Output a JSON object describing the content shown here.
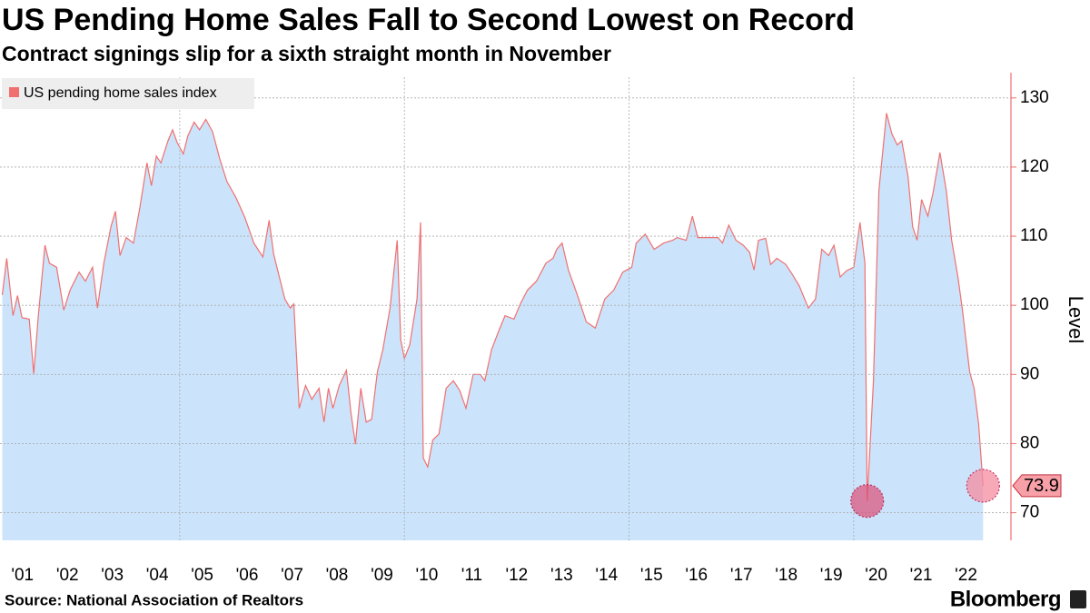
{
  "chart_data": {
    "type": "area",
    "title": "US Pending Home Sales Fall to Second Lowest on Record",
    "subtitle": "Contract signings slip for a sixth straight month in November",
    "y_label": "Level",
    "source": "Source: National Association of Realtors",
    "brand": "Bloomberg",
    "xlim": [
      2001.0,
      2023.5
    ],
    "ylim": [
      66,
      133
    ],
    "yticks": [
      70,
      80,
      90,
      100,
      110,
      120,
      130
    ],
    "xticks": [
      {
        "value": 2001.5,
        "label": "'01"
      },
      {
        "value": 2002.5,
        "label": "'02"
      },
      {
        "value": 2003.5,
        "label": "'03"
      },
      {
        "value": 2004.5,
        "label": "'04"
      },
      {
        "value": 2005.5,
        "label": "'05"
      },
      {
        "value": 2006.5,
        "label": "'06"
      },
      {
        "value": 2007.5,
        "label": "'07"
      },
      {
        "value": 2008.5,
        "label": "'08"
      },
      {
        "value": 2009.5,
        "label": "'09"
      },
      {
        "value": 2010.5,
        "label": "'10"
      },
      {
        "value": 2011.5,
        "label": "'11"
      },
      {
        "value": 2012.5,
        "label": "'12"
      },
      {
        "value": 2013.5,
        "label": "'13"
      },
      {
        "value": 2014.5,
        "label": "'14"
      },
      {
        "value": 2015.5,
        "label": "'15"
      },
      {
        "value": 2016.5,
        "label": "'16"
      },
      {
        "value": 2017.5,
        "label": "'17"
      },
      {
        "value": 2018.5,
        "label": "'18"
      },
      {
        "value": 2019.5,
        "label": "'19"
      },
      {
        "value": 2020.5,
        "label": "'20"
      },
      {
        "value": 2021.5,
        "label": "'21"
      },
      {
        "value": 2022.5,
        "label": "'22"
      }
    ],
    "xgrid": [
      2005,
      2010,
      2015,
      2020
    ],
    "grid": true,
    "legend": "top-left",
    "series": [
      {
        "name": "US pending home sales index",
        "color": "#f07070",
        "fill": "#cce4fb",
        "x": [
          2001.05,
          2001.15,
          2001.29,
          2001.39,
          2001.49,
          2001.65,
          2001.75,
          2001.85,
          2002.0,
          2002.1,
          2002.26,
          2002.42,
          2002.56,
          2002.76,
          2002.9,
          2003.06,
          2003.17,
          2003.31,
          2003.47,
          2003.57,
          2003.67,
          2003.81,
          2003.97,
          2004.11,
          2004.27,
          2004.37,
          2004.48,
          2004.58,
          2004.74,
          2004.84,
          2004.94,
          2005.08,
          2005.18,
          2005.32,
          2005.44,
          2005.58,
          2005.73,
          2005.89,
          2006.05,
          2006.25,
          2006.45,
          2006.65,
          2006.85,
          2006.99,
          2007.09,
          2007.19,
          2007.34,
          2007.46,
          2007.54,
          2007.66,
          2007.8,
          2007.94,
          2008.1,
          2008.21,
          2008.31,
          2008.41,
          2008.55,
          2008.71,
          2008.81,
          2008.91,
          2009.03,
          2009.15,
          2009.27,
          2009.4,
          2009.52,
          2009.68,
          2009.84,
          2009.92,
          2010.0,
          2010.12,
          2010.28,
          2010.36,
          2010.42,
          2010.52,
          2010.63,
          2010.77,
          2010.93,
          2011.09,
          2011.23,
          2011.37,
          2011.53,
          2011.69,
          2011.79,
          2011.94,
          2012.1,
          2012.24,
          2012.44,
          2012.58,
          2012.74,
          2012.94,
          2013.15,
          2013.31,
          2013.39,
          2013.51,
          2013.65,
          2013.85,
          2014.05,
          2014.25,
          2014.46,
          2014.66,
          2014.86,
          2015.06,
          2015.16,
          2015.36,
          2015.56,
          2015.77,
          2015.97,
          2016.07,
          2016.27,
          2016.41,
          2016.53,
          2016.73,
          2016.98,
          2017.08,
          2017.22,
          2017.38,
          2017.54,
          2017.68,
          2017.78,
          2017.88,
          2018.04,
          2018.15,
          2018.29,
          2018.49,
          2018.63,
          2018.79,
          2018.99,
          2019.15,
          2019.29,
          2019.44,
          2019.56,
          2019.7,
          2019.84,
          2020.0,
          2020.14,
          2020.25,
          2020.3,
          2020.44,
          2020.56,
          2020.73,
          2020.85,
          2020.97,
          2021.07,
          2021.21,
          2021.31,
          2021.41,
          2021.51,
          2021.65,
          2021.77,
          2021.92,
          2022.06,
          2022.18,
          2022.32,
          2022.42,
          2022.58,
          2022.68,
          2022.78,
          2022.88
        ],
        "values": [
          101.5,
          106.8,
          98.5,
          101.4,
          98.2,
          98.0,
          90.1,
          98.2,
          108.7,
          106.1,
          105.5,
          99.3,
          102.2,
          104.8,
          103.5,
          105.5,
          99.6,
          106.1,
          111.4,
          113.6,
          107.2,
          109.8,
          109.0,
          114.0,
          120.6,
          117.3,
          121.6,
          120.6,
          123.8,
          125.4,
          123.6,
          121.9,
          124.5,
          126.5,
          125.4,
          126.9,
          125.1,
          121.2,
          117.9,
          115.6,
          112.7,
          109.0,
          107.0,
          112.3,
          107.4,
          104.8,
          100.9,
          99.6,
          100.2,
          85.1,
          88.4,
          86.4,
          88.0,
          83.1,
          88.0,
          85.1,
          88.4,
          90.6,
          84.5,
          79.9,
          88.0,
          83.1,
          83.5,
          90.4,
          93.6,
          99.6,
          109.4,
          95.0,
          92.3,
          94.3,
          100.9,
          112.0,
          77.9,
          76.6,
          80.5,
          81.4,
          88.0,
          89.1,
          87.7,
          85.1,
          90.0,
          90.0,
          89.1,
          93.6,
          96.3,
          98.5,
          98.0,
          100.2,
          102.2,
          103.5,
          106.1,
          106.8,
          108.1,
          109.0,
          105.1,
          101.5,
          97.6,
          96.7,
          100.9,
          102.2,
          104.8,
          105.5,
          109.0,
          110.3,
          108.1,
          109.0,
          109.4,
          109.8,
          109.4,
          112.9,
          109.8,
          109.8,
          109.8,
          109.0,
          111.6,
          109.4,
          108.7,
          107.7,
          105.1,
          109.4,
          109.7,
          105.9,
          106.8,
          105.9,
          104.5,
          102.8,
          99.6,
          100.9,
          108.1,
          107.2,
          108.7,
          104.1,
          105.0,
          105.5,
          112.0,
          106.1,
          71.7,
          89.1,
          116.6,
          127.8,
          124.8,
          123.2,
          123.8,
          118.6,
          111.4,
          109.4,
          115.3,
          112.9,
          116.4,
          122.1,
          116.6,
          109.4,
          104.1,
          99.3,
          90.4,
          88.0,
          82.8,
          73.9
        ],
        "value_labels": {
          "159": "73.9"
        }
      }
    ]
  }
}
